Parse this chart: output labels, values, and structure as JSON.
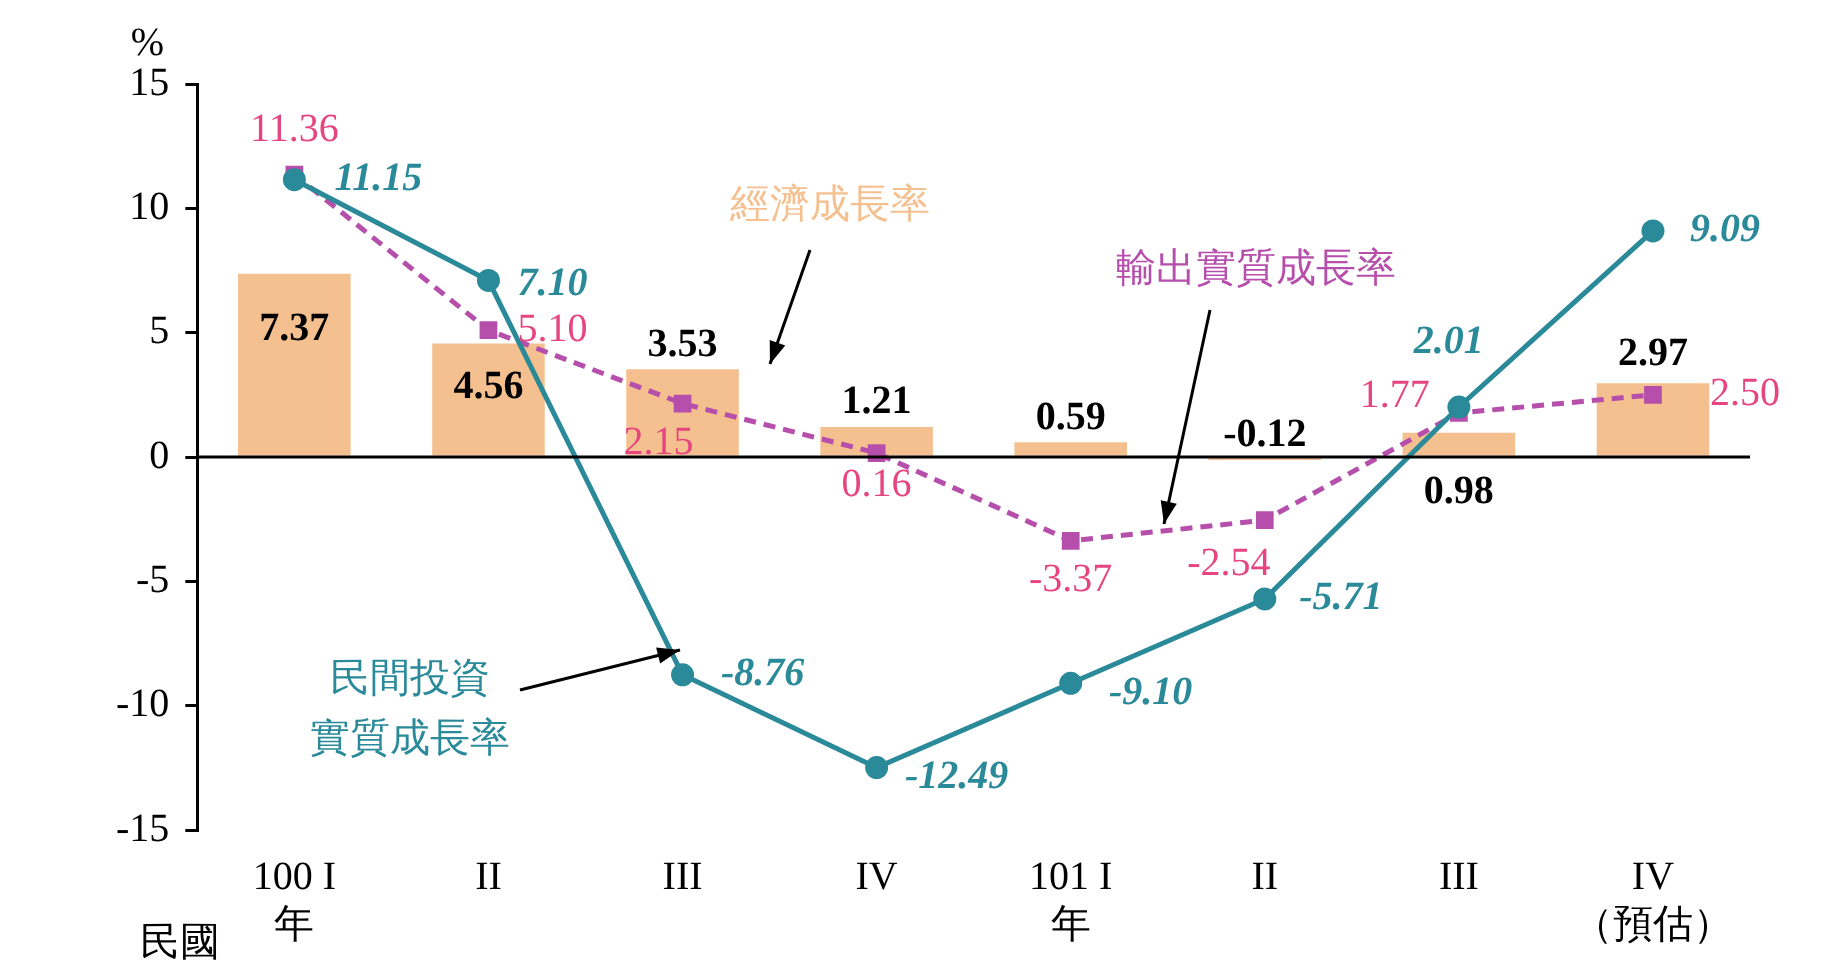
{
  "chart_data": {
    "type": "bar",
    "ylabel": "%",
    "categories": [
      "100 I\n年",
      "II",
      "III",
      "IV",
      "101 I\n年",
      "II",
      "III",
      "IV\n（預估）"
    ],
    "series": [
      {
        "name": "經濟成長率",
        "color": "#f5c08f",
        "values": [
          7.37,
          4.56,
          3.53,
          1.21,
          0.59,
          -0.12,
          0.98,
          2.97
        ],
        "value_labels": [
          "7.37",
          "4.56",
          "3.53",
          "1.21",
          "0.59",
          "-0.12",
          "0.98",
          "2.97"
        ]
      },
      {
        "name": "民間投資實質成長率",
        "type": "line",
        "color": "#2a8a99",
        "marker": "circle",
        "line_style": "solid",
        "values": [
          11.15,
          7.1,
          -8.76,
          -12.49,
          -9.1,
          -5.71,
          2.01,
          9.09
        ],
        "value_labels": [
          "11.15",
          "7.10",
          "-8.76",
          "-12.49",
          "-9.10",
          "-5.71",
          "2.01",
          "9.09"
        ]
      },
      {
        "name": "輸出實質成長率",
        "type": "line",
        "color": "#b64fab",
        "marker": "square",
        "line_style": "dashed",
        "values": [
          11.36,
          5.1,
          2.15,
          0.16,
          -3.37,
          -2.54,
          1.77,
          2.5
        ],
        "value_labels": [
          "11.36",
          "5.10",
          "2.15",
          "0.16",
          "-3.37",
          "-2.54",
          "1.77",
          "2.50"
        ]
      }
    ],
    "ylim": [
      -15,
      15
    ],
    "yticks": [
      -15,
      -10,
      -5,
      0,
      5,
      10,
      15
    ],
    "grid": false,
    "legend": false,
    "ref_lines": [
      {
        "axis": "y",
        "value": 0,
        "color": "#000000"
      }
    ],
    "annotations": [
      "民國"
    ]
  }
}
